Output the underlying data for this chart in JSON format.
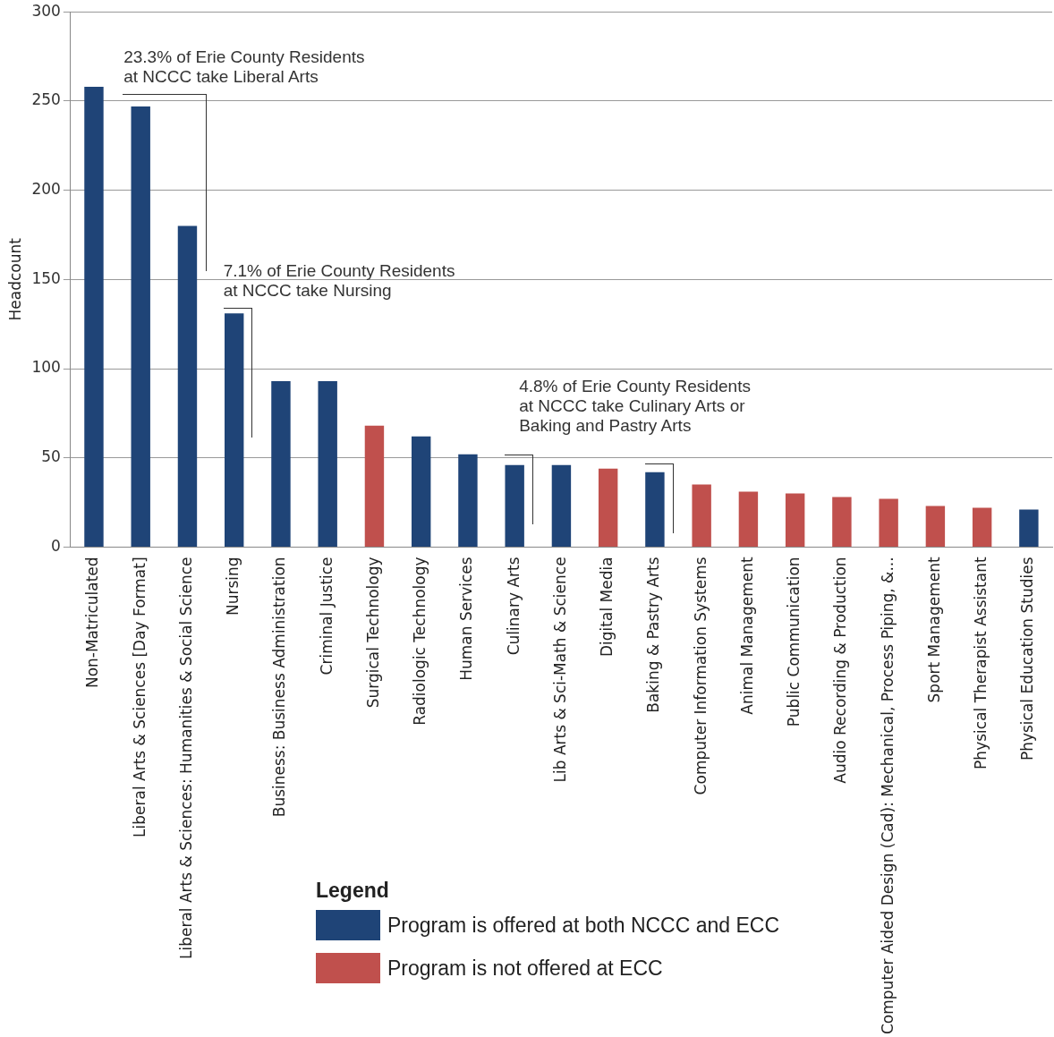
{
  "chart_data": {
    "type": "bar",
    "ylabel": "Headcount",
    "legend_title": "Legend",
    "legend": "bottom",
    "grid": "y",
    "categories": [
      "Non-Matriculated",
      "Liberal Arts & Sciences [Day Format]",
      "Liberal Arts & Sciences: Humanities & Social Science",
      "Nursing",
      "Business: Business Administration",
      "Criminal Justice",
      "Surgical Technology",
      "Radiologic Technology",
      "Human Services",
      "Culinary Arts",
      "Lib Arts & Sci-Math & Science",
      "Digital Media",
      "Baking & Pastry Arts",
      "Computer Information Systems",
      "Animal Management",
      "Public Communication",
      "Audio Recording & Production",
      "Computer Aided Design (Cad): Mechanical, Process Piping, &...",
      "Sport Management",
      "Physical Therapist Assistant",
      "Physical Education Studies"
    ],
    "series": [
      {
        "name": "Program is offered at both NCCC and ECC",
        "color": "#1f4477",
        "values": [
          258,
          247,
          180,
          131,
          93,
          93,
          null,
          62,
          52,
          46,
          46,
          null,
          42,
          null,
          null,
          null,
          null,
          null,
          null,
          null,
          21
        ]
      },
      {
        "name": "Program is not offered at ECC",
        "color": "#c0504d",
        "values": [
          null,
          null,
          null,
          null,
          null,
          null,
          68,
          null,
          null,
          null,
          null,
          44,
          null,
          35,
          31,
          30,
          28,
          27,
          23,
          22,
          null
        ]
      }
    ],
    "ylim": [
      0,
      300
    ],
    "yticks": [
      0,
      50,
      100,
      150,
      200,
      250,
      300
    ],
    "annotations": [
      "23.3% of Erie County Residents\nat NCCC take Liberal Arts",
      "7.1% of Erie County Residents\nat NCCC take Nursing",
      "4.8% of Erie County Residents\nat NCCC take Culinary Arts or\nBaking and Pastry Arts"
    ]
  }
}
